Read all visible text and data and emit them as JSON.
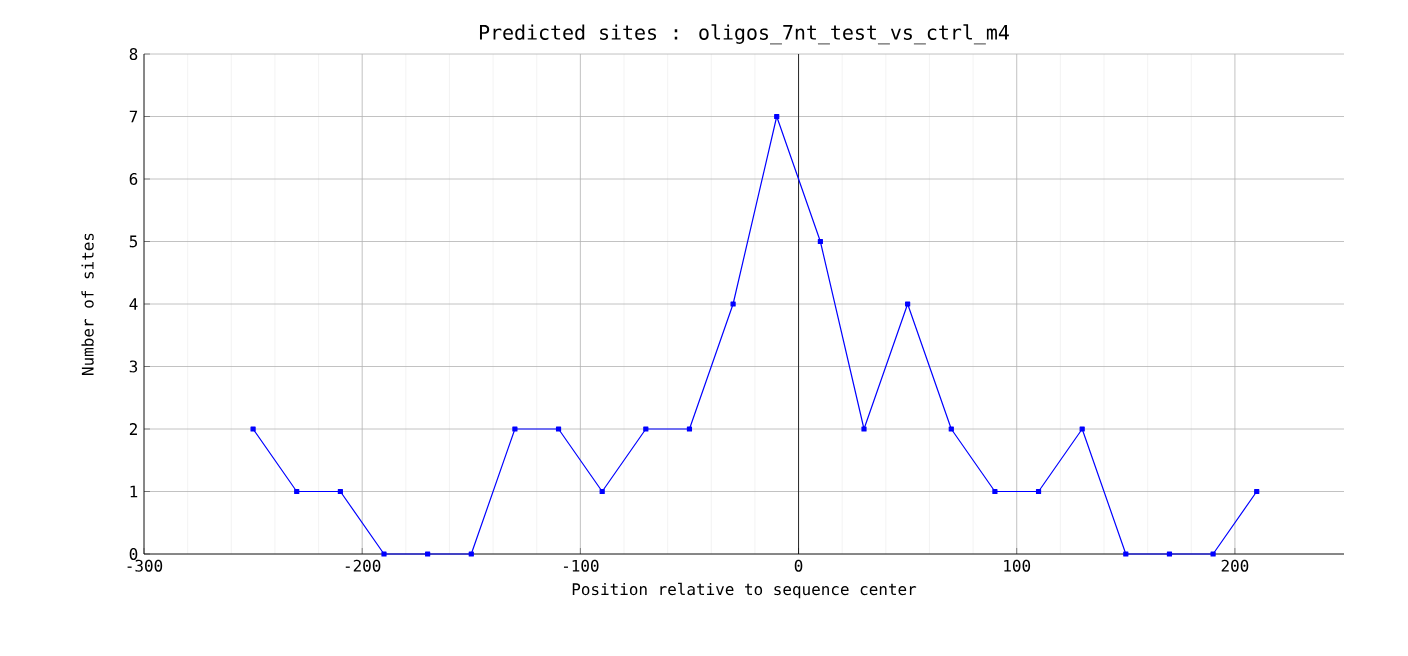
{
  "chart_data": {
    "type": "line",
    "title": "Predicted sites : oligos_7nt_test_vs_ctrl_m4",
    "xlabel": "Position relative to sequence center",
    "ylabel": "Number of sites",
    "x": [
      -250,
      -230,
      -210,
      -190,
      -170,
      -150,
      -130,
      -110,
      -90,
      -70,
      -50,
      -30,
      -10,
      10,
      30,
      50,
      70,
      90,
      110,
      130,
      150,
      170,
      190,
      210
    ],
    "series": [
      {
        "color": "#0000ff",
        "values": [
          2,
          1,
          1,
          0,
          0,
          0,
          2,
          2,
          1,
          2,
          2,
          4,
          7,
          5,
          2,
          4,
          2,
          1,
          1,
          2,
          0,
          0,
          0,
          1
        ]
      }
    ],
    "xlim": [
      -300,
      250
    ],
    "xticks": [
      -300,
      -200,
      -100,
      0,
      100,
      200
    ],
    "ylim": [
      0,
      8
    ],
    "yticks": [
      0,
      1,
      2,
      3,
      4,
      5,
      6,
      7,
      8
    ],
    "grid": true,
    "marker": "square",
    "line_style": "solid",
    "ref_lines": [
      {
        "axis": "x",
        "value": 0,
        "color": "#000000"
      }
    ]
  }
}
